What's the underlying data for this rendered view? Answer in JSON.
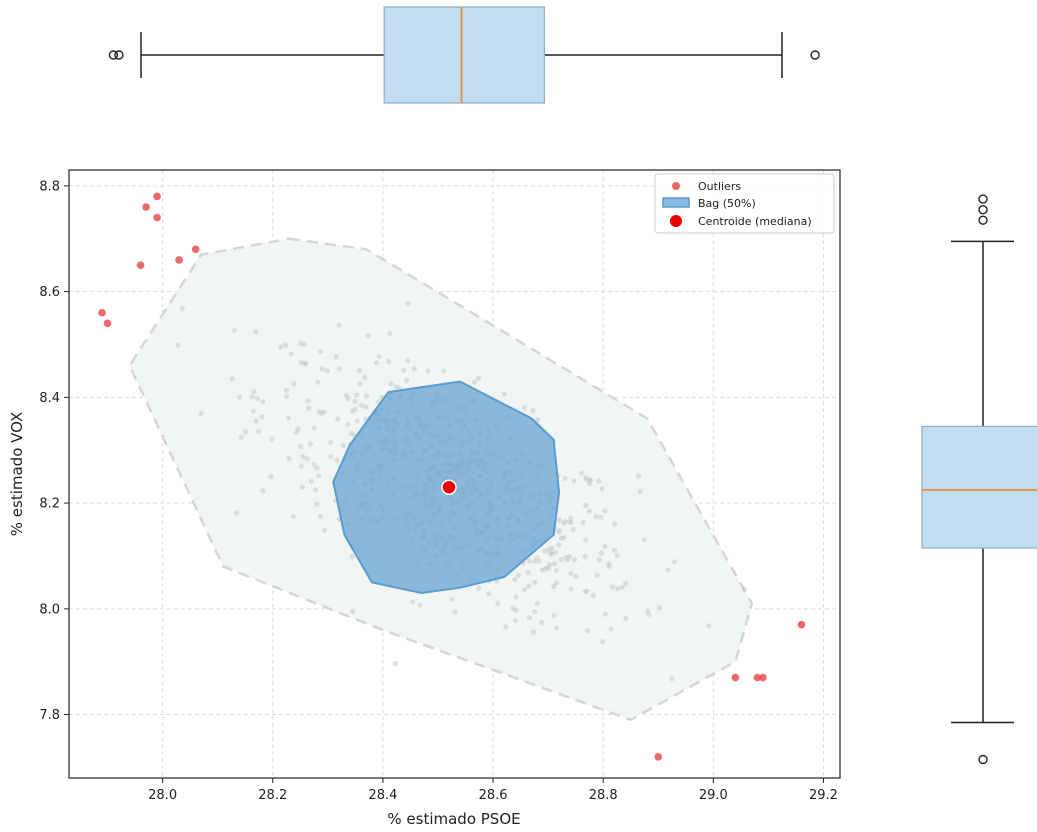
{
  "chart_data": [
    {
      "type": "scatter",
      "title": "",
      "xlabel": "% estimado PSOE",
      "ylabel": "% estimado VOX",
      "xlim": [
        27.83,
        29.23
      ],
      "ylim": [
        7.68,
        8.83
      ],
      "xticks": [
        "28.0",
        "28.2",
        "28.4",
        "28.6",
        "28.8",
        "29.0",
        "29.2"
      ],
      "yticks": [
        "7.8",
        "8.0",
        "8.2",
        "8.4",
        "8.6",
        "8.8"
      ],
      "grid": true,
      "legend_position": "top-right",
      "legend": [
        {
          "label": "Outliers",
          "marker": "dot",
          "color": "#e8504f"
        },
        {
          "label": "Bag (50%)",
          "marker": "patch",
          "color": "#6fa8d6"
        },
        {
          "label": "Centroide (mediana)",
          "marker": "dot",
          "color": "#ee0000"
        }
      ],
      "centroid": {
        "x": 28.52,
        "y": 8.23
      },
      "outliers": [
        {
          "x": 27.89,
          "y": 8.56
        },
        {
          "x": 27.9,
          "y": 8.54
        },
        {
          "x": 27.96,
          "y": 8.65
        },
        {
          "x": 27.97,
          "y": 8.76
        },
        {
          "x": 27.99,
          "y": 8.74
        },
        {
          "x": 27.99,
          "y": 8.78
        },
        {
          "x": 28.03,
          "y": 8.66
        },
        {
          "x": 28.06,
          "y": 8.68
        },
        {
          "x": 28.9,
          "y": 7.72
        },
        {
          "x": 29.04,
          "y": 7.87
        },
        {
          "x": 29.08,
          "y": 7.87
        },
        {
          "x": 29.09,
          "y": 7.87
        },
        {
          "x": 29.16,
          "y": 7.97
        }
      ],
      "bag_polygon": [
        [
          28.41,
          8.41
        ],
        [
          28.54,
          8.43
        ],
        [
          28.67,
          8.36
        ],
        [
          28.71,
          8.32
        ],
        [
          28.72,
          8.22
        ],
        [
          28.71,
          8.14
        ],
        [
          28.62,
          8.06
        ],
        [
          28.54,
          8.04
        ],
        [
          28.47,
          8.03
        ],
        [
          28.38,
          8.05
        ],
        [
          28.33,
          8.14
        ],
        [
          28.31,
          8.24
        ],
        [
          28.34,
          8.31
        ]
      ],
      "fence_polygon": [
        [
          28.23,
          8.7
        ],
        [
          28.37,
          8.68
        ],
        [
          28.53,
          8.58
        ],
        [
          28.88,
          8.36
        ],
        [
          29.07,
          8.01
        ],
        [
          29.04,
          7.9
        ],
        [
          28.85,
          7.79
        ],
        [
          28.4,
          7.96
        ],
        [
          28.11,
          8.08
        ],
        [
          27.94,
          8.46
        ],
        [
          28.07,
          8.67
        ]
      ],
      "colors": {
        "bag_fill": "#6fa8d6",
        "bag_edge": "#5a9ccb",
        "fence_fill": "#f2f5f5",
        "fence_edge": "#d6d6d6",
        "inlier": "#c9c9c9",
        "outlier": "#e8504f",
        "centroid": "#ee0000"
      }
    },
    {
      "type": "boxplot",
      "orientation": "horizontal",
      "variable": "% estimado PSOE",
      "whisker_low": 27.94,
      "q1": 28.38,
      "median": 28.52,
      "q3": 28.67,
      "whisker_high": 29.1,
      "fliers": [
        27.89,
        27.9,
        29.16
      ],
      "colors": {
        "box": "#c0ddf2",
        "edge": "#8faec6",
        "median": "#ee8a2f"
      }
    },
    {
      "type": "boxplot",
      "orientation": "vertical",
      "variable": "% estimado VOX",
      "whisker_low": 7.79,
      "q1": 8.12,
      "median": 8.23,
      "q3": 8.35,
      "whisker_high": 8.7,
      "fliers": [
        7.72,
        8.74,
        8.76,
        8.78
      ],
      "colors": {
        "box": "#c0ddf2",
        "edge": "#8faec6",
        "median": "#ee8a2f"
      }
    }
  ]
}
